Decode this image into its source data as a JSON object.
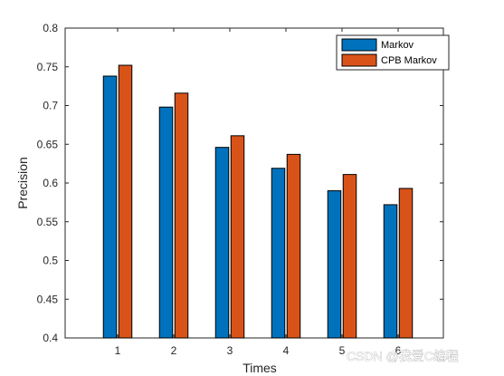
{
  "chart_data": {
    "type": "bar",
    "title": "",
    "xlabel": "Times",
    "ylabel": "Precision",
    "categories": [
      "1",
      "2",
      "3",
      "4",
      "5",
      "6"
    ],
    "ylim": [
      0.4,
      0.8
    ],
    "yticks": [
      "0.4",
      "0.45",
      "0.5",
      "0.55",
      "0.6",
      "0.65",
      "0.7",
      "0.75",
      "0.8"
    ],
    "grid": false,
    "legend_position": "top-right",
    "series": [
      {
        "name": "Markov",
        "color": "#0072BD",
        "values": [
          0.738,
          0.698,
          0.646,
          0.619,
          0.59,
          0.572
        ]
      },
      {
        "name": "CPB Markov",
        "color": "#D95319",
        "values": [
          0.752,
          0.716,
          0.661,
          0.637,
          0.611,
          0.593
        ]
      }
    ]
  },
  "watermark": {
    "text": "CSDN @我爱C编程"
  }
}
